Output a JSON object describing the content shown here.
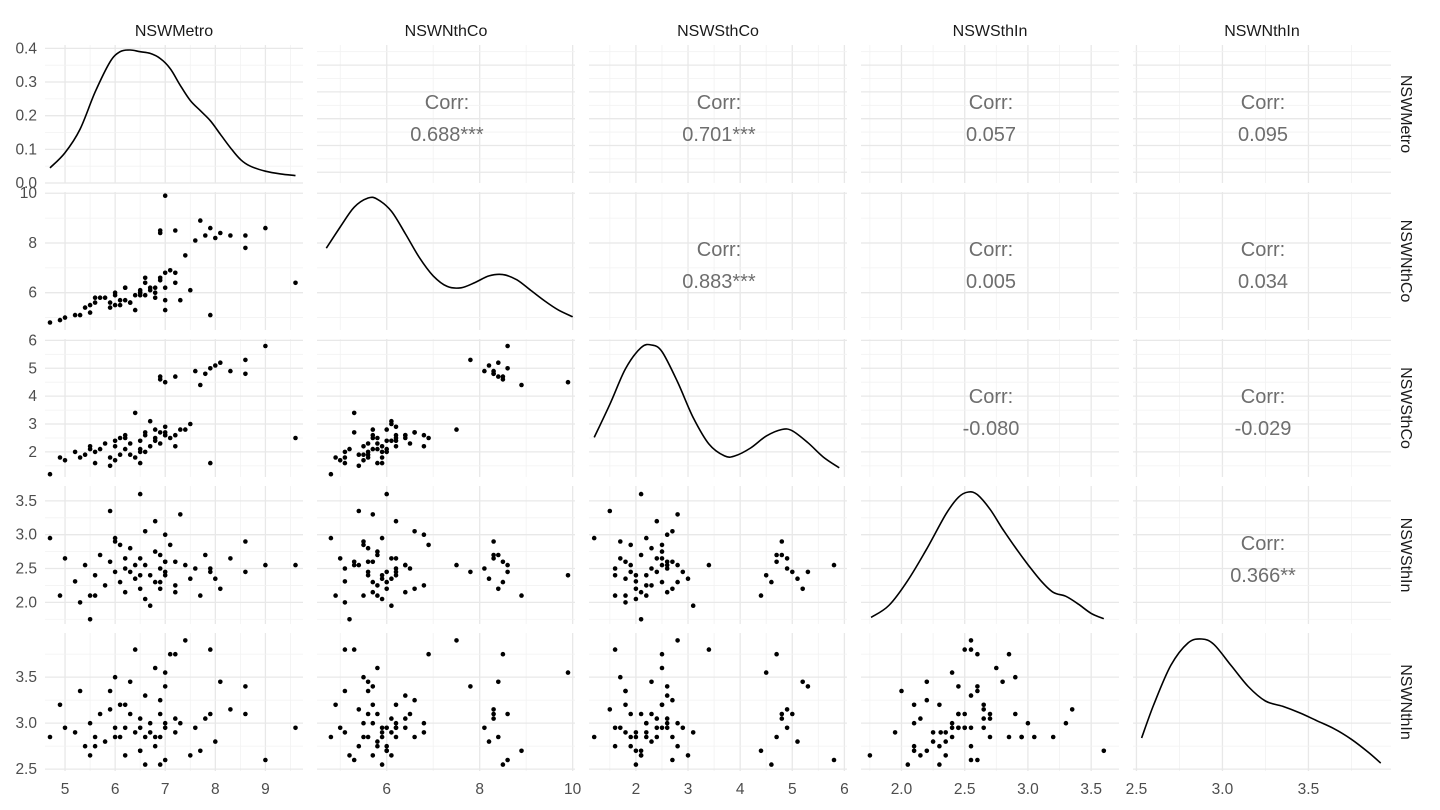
{
  "chart_data": {
    "type": "scatter",
    "title": "",
    "variables": [
      "NSWMetro",
      "NSWNthCo",
      "NSWSthCo",
      "NSWSthIn",
      "NSWNthIn"
    ],
    "axes": [
      {
        "var": "NSWMetro",
        "xlim": [
          4.6,
          9.75
        ],
        "ticks": [
          "5",
          "6",
          "7",
          "8",
          "9"
        ],
        "tick_values": [
          5,
          6,
          7,
          8,
          9
        ]
      },
      {
        "var": "NSWNthCo",
        "xlim": [
          4.5,
          10.05
        ],
        "ticks": [
          "6",
          "8",
          "10"
        ],
        "tick_values": [
          6,
          8,
          10
        ]
      },
      {
        "var": "NSWSthCo",
        "xlim": [
          1.1,
          6.05
        ],
        "ticks": [
          "2",
          "3",
          "4",
          "5",
          "6"
        ],
        "tick_values": [
          2,
          3,
          4,
          5,
          6
        ]
      },
      {
        "var": "NSWSthIn",
        "xlim": [
          1.68,
          3.72
        ],
        "ticks": [
          "2.0",
          "2.5",
          "3.0",
          "3.5"
        ],
        "tick_values": [
          2.0,
          2.5,
          3.0,
          3.5
        ]
      },
      {
        "var": "NSWNthIn",
        "xlim": [
          2.48,
          3.98
        ],
        "ticks": [
          "2.5",
          "3.0",
          "3.5"
        ],
        "tick_values": [
          2.5,
          3.0,
          3.5
        ]
      }
    ],
    "density_ylim": [
      0,
      0.41
    ],
    "density_yticks": [
      "0.0",
      "0.1",
      "0.2",
      "0.3",
      "0.4"
    ],
    "density_ytick_values": [
      0.0,
      0.1,
      0.2,
      0.3,
      0.4
    ],
    "grid": true,
    "correlations": [
      {
        "row": 0,
        "col": 1,
        "label": "Corr:",
        "value": "0.688***"
      },
      {
        "row": 0,
        "col": 2,
        "label": "Corr:",
        "value": "0.701***"
      },
      {
        "row": 0,
        "col": 3,
        "label": "Corr:",
        "value": "0.057"
      },
      {
        "row": 0,
        "col": 4,
        "label": "Corr:",
        "value": "0.095"
      },
      {
        "row": 1,
        "col": 2,
        "label": "Corr:",
        "value": "0.883***"
      },
      {
        "row": 1,
        "col": 3,
        "label": "Corr:",
        "value": "0.005"
      },
      {
        "row": 1,
        "col": 4,
        "label": "Corr:",
        "value": "0.034"
      },
      {
        "row": 2,
        "col": 3,
        "label": "Corr:",
        "value": "-0.080"
      },
      {
        "row": 2,
        "col": 4,
        "label": "Corr:",
        "value": "-0.029"
      },
      {
        "row": 3,
        "col": 4,
        "label": "Corr:",
        "value": "0.366**"
      }
    ],
    "densities": [
      {
        "var": "NSWMetro",
        "x": [
          4.7,
          5.0,
          5.3,
          5.6,
          5.9,
          6.1,
          6.3,
          6.5,
          6.7,
          6.9,
          7.1,
          7.3,
          7.5,
          7.7,
          7.9,
          8.1,
          8.3,
          8.5,
          8.7,
          9.0,
          9.3,
          9.6
        ],
        "y": [
          0.045,
          0.09,
          0.16,
          0.27,
          0.36,
          0.39,
          0.395,
          0.39,
          0.385,
          0.37,
          0.34,
          0.29,
          0.245,
          0.215,
          0.185,
          0.145,
          0.105,
          0.07,
          0.05,
          0.035,
          0.027,
          0.022
        ]
      },
      {
        "var": "NSWNthCo",
        "x": [
          4.7,
          5.0,
          5.3,
          5.6,
          5.8,
          6.1,
          6.4,
          6.7,
          7.0,
          7.3,
          7.6,
          7.9,
          8.2,
          8.5,
          8.8,
          9.1,
          9.4,
          9.7,
          10.0
        ],
        "y": [
          0.62,
          0.78,
          0.93,
          1.0,
          0.99,
          0.9,
          0.73,
          0.55,
          0.41,
          0.33,
          0.32,
          0.36,
          0.41,
          0.42,
          0.38,
          0.3,
          0.22,
          0.15,
          0.1
        ]
      },
      {
        "var": "NSWSthCo",
        "x": [
          1.2,
          1.5,
          1.8,
          2.1,
          2.3,
          2.5,
          2.8,
          3.1,
          3.4,
          3.7,
          3.9,
          4.2,
          4.5,
          4.8,
          5.0,
          5.3,
          5.6,
          5.9
        ],
        "y": [
          0.3,
          0.55,
          0.82,
          0.98,
          1.0,
          0.95,
          0.72,
          0.45,
          0.25,
          0.16,
          0.16,
          0.22,
          0.31,
          0.36,
          0.35,
          0.26,
          0.15,
          0.07
        ]
      },
      {
        "var": "NSWSthIn",
        "x": [
          1.76,
          1.9,
          2.05,
          2.2,
          2.35,
          2.45,
          2.53,
          2.6,
          2.7,
          2.8,
          2.9,
          3.0,
          3.1,
          3.2,
          3.3,
          3.4,
          3.5,
          3.6
        ],
        "y": [
          0.05,
          0.14,
          0.33,
          0.57,
          0.83,
          0.96,
          1.0,
          0.98,
          0.87,
          0.72,
          0.58,
          0.45,
          0.33,
          0.24,
          0.21,
          0.15,
          0.08,
          0.04
        ]
      },
      {
        "var": "NSWNthIn",
        "x": [
          2.53,
          2.6,
          2.7,
          2.8,
          2.88,
          2.95,
          3.05,
          3.15,
          3.25,
          3.35,
          3.45,
          3.55,
          3.65,
          3.75,
          3.85,
          3.92
        ],
        "y": [
          0.25,
          0.5,
          0.8,
          0.97,
          1.0,
          0.96,
          0.8,
          0.64,
          0.53,
          0.49,
          0.44,
          0.38,
          0.32,
          0.24,
          0.14,
          0.06
        ]
      }
    ],
    "observations": {
      "NSWMetro": [
        5.2,
        5.4,
        5.5,
        5.6,
        5.7,
        5.8,
        5.9,
        6.0,
        6.0,
        6.1,
        6.2,
        6.2,
        6.3,
        6.4,
        6.5,
        6.5,
        6.6,
        6.6,
        6.7,
        6.8,
        6.8,
        6.9,
        7.0,
        7.0,
        7.1,
        7.2,
        7.3,
        7.5,
        6.4,
        6.8,
        7.0,
        6.2,
        6.5,
        5.5,
        6.0,
        6.3,
        6.6,
        6.9,
        7.4,
        5.6,
        4.7,
        4.9,
        5.0,
        5.3,
        6.5,
        7.2,
        6.1,
        5.9,
        6.7,
        7.0,
        7.9,
        8.6,
        6.9,
        7.6,
        7.9,
        8.1,
        7.7,
        6.9,
        8.3,
        8.0,
        9.0,
        7.2,
        7.8,
        8.6,
        9.6,
        7.0
      ],
      "NSWNthCo": [
        5.1,
        5.4,
        5.5,
        5.6,
        5.8,
        5.8,
        5.6,
        6.0,
        5.9,
        5.7,
        5.7,
        6.2,
        5.6,
        5.9,
        6.1,
        6.0,
        6.4,
        6.6,
        6.2,
        5.8,
        6.0,
        6.5,
        5.7,
        6.2,
        6.9,
        6.8,
        5.7,
        6.1,
        5.3,
        6.2,
        6.8,
        6.2,
        5.9,
        5.2,
        5.5,
        5.6,
        5.9,
        6.6,
        7.5,
        5.8,
        4.8,
        4.9,
        5.0,
        5.1,
        6.0,
        6.4,
        5.5,
        5.4,
        6.1,
        5.3,
        5.1,
        8.3,
        8.4,
        8.1,
        8.6,
        8.4,
        8.9,
        8.5,
        8.3,
        8.2,
        8.6,
        8.5,
        8.3,
        7.8,
        6.4,
        9.9
      ],
      "NSWSthCo": [
        2.0,
        1.9,
        2.2,
        2.0,
        2.1,
        2.3,
        1.8,
        2.4,
        2.2,
        2.5,
        2.1,
        2.6,
        2.3,
        1.8,
        2.4,
        2.0,
        2.6,
        2.7,
        2.2,
        2.5,
        2.8,
        2.3,
        2.6,
        2.9,
        2.5,
        2.2,
        2.8,
        3.0,
        3.4,
        2.4,
        2.6,
        2.5,
        1.6,
        2.1,
        1.7,
        1.9,
        2.0,
        2.7,
        2.8,
        1.6,
        1.2,
        1.8,
        1.7,
        1.8,
        2.1,
        2.6,
        1.9,
        1.5,
        3.1,
        2.7,
        1.6,
        4.8,
        4.7,
        4.9,
        5.0,
        5.2,
        4.4,
        4.6,
        4.9,
        5.1,
        5.8,
        4.7,
        4.8,
        5.3,
        2.5,
        4.5
      ],
      "NSWSthIn": [
        2.31,
        2.55,
        2.1,
        2.4,
        2.7,
        2.25,
        2.6,
        2.45,
        2.95,
        2.3,
        2.15,
        2.5,
        2.8,
        2.35,
        2.65,
        2.2,
        2.55,
        3.05,
        2.4,
        2.75,
        2.3,
        2.5,
        2.6,
        2.45,
        2.85,
        2.25,
        3.3,
        2.35,
        2.55,
        3.2,
        3.0,
        2.65,
        2.4,
        1.75,
        2.9,
        2.45,
        2.05,
        2.2,
        2.55,
        2.1,
        2.95,
        2.1,
        2.65,
        2.0,
        3.6,
        2.15,
        2.85,
        3.35,
        1.95,
        2.6,
        2.5,
        2.9,
        2.7,
        2.5,
        2.45,
        2.2,
        2.1,
        2.3,
        2.65,
        2.35,
        2.55,
        2.6,
        2.7,
        2.45,
        2.55,
        2.4
      ],
      "NSWNthIn": [
        2.9,
        2.75,
        3.0,
        2.85,
        3.1,
        2.8,
        3.35,
        2.95,
        2.85,
        3.2,
        2.65,
        2.95,
        3.45,
        2.9,
        3.05,
        2.7,
        3.3,
        2.85,
        3.0,
        3.6,
        2.75,
        3.1,
        3.4,
        2.95,
        3.75,
        2.9,
        3.0,
        2.65,
        3.8,
        2.85,
        3.0,
        3.2,
        2.95,
        2.65,
        3.5,
        3.1,
        2.55,
        3.25,
        3.9,
        2.75,
        2.85,
        3.2,
        2.95,
        3.35,
        2.7,
        3.05,
        2.85,
        3.15,
        2.9,
        2.6,
        3.8,
        3.1,
        2.85,
        2.95,
        3.1,
        3.45,
        2.7,
        2.55,
        3.15,
        2.8,
        2.6,
        3.75,
        3.05,
        3.4,
        2.95,
        3.55
      ]
    }
  }
}
